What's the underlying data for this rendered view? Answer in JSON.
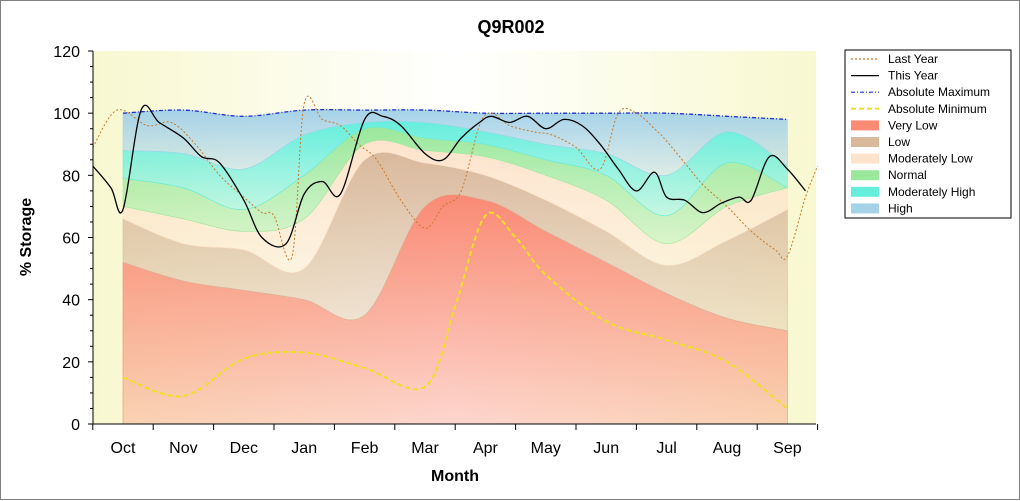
{
  "chart_data": {
    "type": "area",
    "title": "Q9R002",
    "xlabel": "Month",
    "ylabel": "% Storage",
    "ylim": [
      0,
      120
    ],
    "yticks": [
      "0",
      "20",
      "40",
      "60",
      "80",
      "100",
      "120"
    ],
    "categories": [
      "Oct",
      "Nov",
      "Dec",
      "Jan",
      "Feb",
      "Mar",
      "Apr",
      "May",
      "Jun",
      "Jul",
      "Aug",
      "Sep"
    ],
    "legend_position": "right",
    "grid": false,
    "bands": [
      {
        "name": "Very Low",
        "color": "#f98a74",
        "lower": [
          0,
          0,
          0,
          0,
          0,
          0,
          0,
          0,
          0,
          0,
          0,
          0
        ],
        "upper": [
          52,
          46,
          43,
          40,
          35,
          70,
          72,
          62,
          52,
          42,
          34,
          30
        ]
      },
      {
        "name": "Low",
        "color": "#d9b99c",
        "lower": [
          52,
          46,
          43,
          40,
          35,
          70,
          72,
          62,
          52,
          42,
          34,
          30
        ],
        "upper": [
          66,
          58,
          56,
          50,
          85,
          84,
          80,
          72,
          62,
          51,
          59,
          69
        ]
      },
      {
        "name": "Moderately Low",
        "color": "#fde3cb",
        "lower": [
          66,
          58,
          56,
          50,
          85,
          84,
          80,
          72,
          62,
          51,
          59,
          69
        ],
        "upper": [
          70,
          66,
          62,
          66,
          90,
          88,
          86,
          80,
          72,
          58,
          70,
          76
        ]
      },
      {
        "name": "Normal",
        "color": "#9ae89c",
        "lower": [
          70,
          66,
          62,
          66,
          90,
          88,
          86,
          80,
          72,
          58,
          70,
          76
        ],
        "upper": [
          79,
          76,
          69,
          80,
          95,
          92,
          90,
          85,
          80,
          67,
          84,
          76
        ]
      },
      {
        "name": "Moderately High",
        "color": "#66eedd",
        "lower": [
          79,
          76,
          69,
          80,
          95,
          92,
          90,
          85,
          80,
          67,
          84,
          76
        ],
        "upper": [
          88,
          87,
          82,
          93,
          97,
          97,
          94,
          90,
          87,
          80,
          94,
          83
        ]
      },
      {
        "name": "High",
        "color": "#a6d2e8",
        "lower": [
          88,
          87,
          82,
          93,
          97,
          97,
          94,
          90,
          87,
          80,
          94,
          83
        ],
        "upper": [
          100,
          101,
          99,
          101,
          101,
          101,
          100,
          100,
          100,
          100,
          99,
          98
        ]
      }
    ],
    "series": [
      {
        "name": "Last Year",
        "color": "#c8782a",
        "style": "dotted",
        "x": [
          -0.5,
          -0.1,
          0.4,
          0.8,
          1.2,
          1.6,
          2.0,
          2.3,
          2.5,
          2.8,
          3.0,
          3.3,
          3.6,
          3.9,
          4.2,
          4.6,
          5.0,
          5.3,
          5.6,
          5.9,
          6.1,
          6.4,
          6.8,
          7.1,
          7.5,
          7.9,
          8.2,
          8.5,
          8.8,
          9.0,
          9.3,
          9.6,
          10.0,
          10.4,
          10.8,
          11.0,
          11.3,
          11.5
        ],
        "values": [
          89,
          101,
          96,
          97,
          90,
          80,
          73,
          68,
          67,
          54,
          103,
          98,
          96,
          90,
          85,
          72,
          63,
          70,
          75,
          96,
          100,
          96,
          94,
          93,
          89,
          82,
          100,
          100,
          95,
          91,
          84,
          77,
          70,
          62,
          56,
          54,
          73,
          83
        ]
      },
      {
        "name": "This Year",
        "color": "#000000",
        "style": "solid",
        "x": [
          -0.5,
          -0.2,
          0.0,
          0.3,
          0.6,
          1.0,
          1.3,
          1.6,
          2.0,
          2.3,
          2.7,
          3.0,
          3.3,
          3.6,
          4.0,
          4.3,
          4.6,
          5.0,
          5.3,
          5.6,
          5.9,
          6.1,
          6.4,
          6.7,
          7.0,
          7.3,
          7.6,
          7.9,
          8.2,
          8.5,
          8.8,
          9.0,
          9.3,
          9.6,
          9.9,
          10.2,
          10.4,
          10.7,
          11.0,
          11.3
        ],
        "values": [
          83,
          76,
          69,
          101,
          97,
          92,
          86,
          84,
          72,
          60,
          58,
          74,
          78,
          74,
          98,
          99,
          96,
          87,
          85,
          92,
          97,
          99,
          97,
          99,
          95,
          98,
          96,
          90,
          82,
          75,
          81,
          73,
          72,
          68,
          71,
          73,
          72,
          86,
          82,
          75
        ]
      },
      {
        "name": "Absolute Maximum",
        "color": "#2030c8",
        "style": "dashdot",
        "x": [
          0,
          1,
          2,
          3,
          4,
          5,
          6,
          7,
          8,
          9,
          10,
          11
        ],
        "values": [
          100,
          101,
          99,
          101,
          101,
          101,
          100,
          100,
          100,
          100,
          99,
          98
        ]
      },
      {
        "name": "Absolute Minimum",
        "color": "#f0e020",
        "style": "dashed",
        "x": [
          0,
          1,
          2,
          3,
          4,
          5,
          5.5,
          6,
          6.5,
          7,
          8,
          9,
          10,
          11
        ],
        "values": [
          15,
          9,
          21,
          23,
          18,
          12,
          38,
          67,
          60,
          48,
          33,
          27,
          20,
          5
        ]
      }
    ],
    "colors": {
      "plot_bg": "#fdfde8",
      "plot_bg_edge": "#f8f8d0"
    }
  }
}
